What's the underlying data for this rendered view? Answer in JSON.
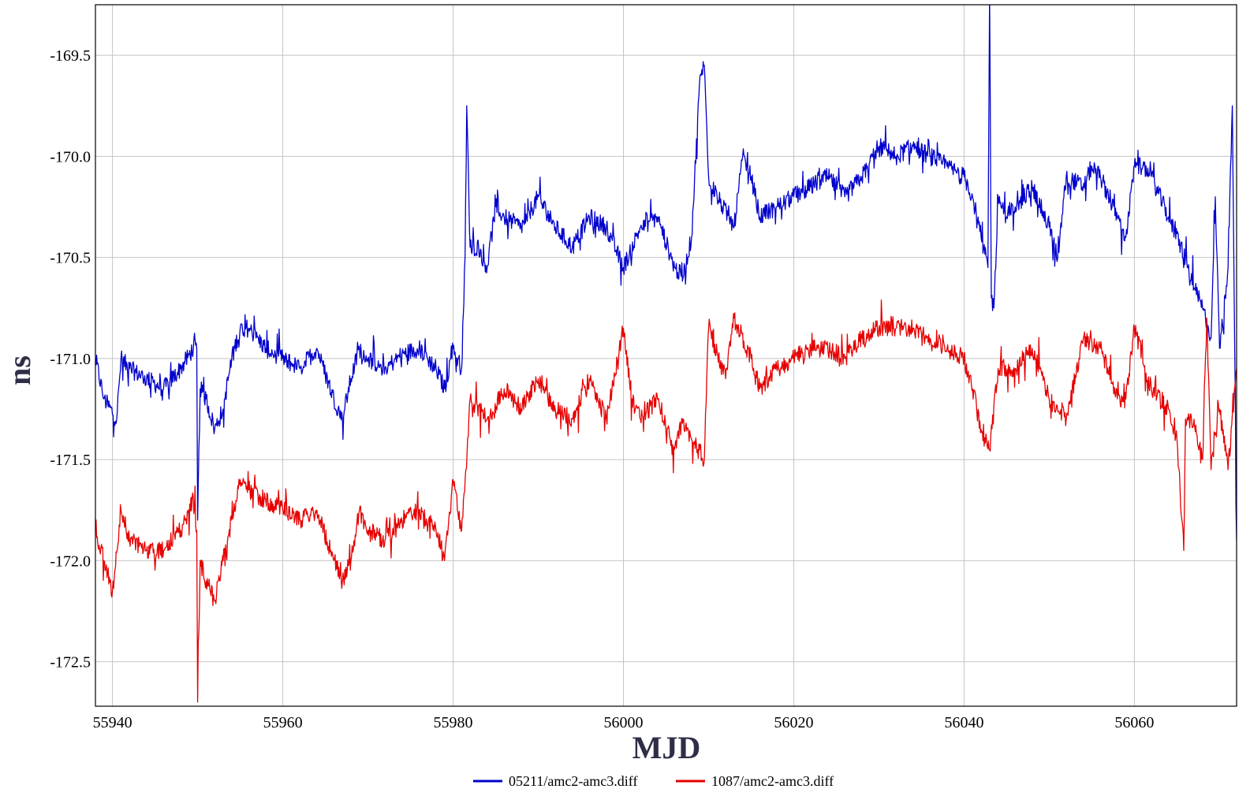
{
  "chart_data": {
    "type": "line",
    "title": "",
    "xlabel": "MJD",
    "ylabel": "ns",
    "xlim": [
      55938,
      56072
    ],
    "ylim": [
      -172.72,
      -169.25
    ],
    "xticks": [
      55940,
      55960,
      55980,
      56000,
      56020,
      56040,
      56060
    ],
    "xtick_labels": [
      "55940",
      "55960",
      "55980",
      "56000",
      "56020",
      "56040",
      "56060"
    ],
    "yticks": [
      -169.5,
      -170.0,
      -170.5,
      -171.0,
      -171.5,
      -172.0,
      -172.5
    ],
    "ytick_labels": [
      "-169.5",
      "-170.0",
      "-170.5",
      "-171.0",
      "-171.5",
      "-172.0",
      "-172.5"
    ],
    "grid": true,
    "legend_position": "bottom-center",
    "series": [
      {
        "name": "05211/amc2-amc3.diff",
        "color": "#0000cc",
        "x": [
          55938.0,
          55939.0,
          55940.5,
          55941.0,
          55942.0,
          55944.0,
          55946.0,
          55948.0,
          55949.5,
          55949.9,
          55950.0,
          55950.3,
          55951.0,
          55952.0,
          55953.0,
          55954.0,
          55955.0,
          55956.0,
          55958.0,
          55960.0,
          55962.0,
          55964.0,
          55966.0,
          55967.0,
          55968.0,
          55969.0,
          55970.0,
          55972.0,
          55974.0,
          55976.0,
          55978.0,
          55979.0,
          55980.0,
          55981.0,
          55981.4,
          55981.6,
          55982.0,
          55983.0,
          55984.0,
          55985.0,
          55986.0,
          55988.0,
          55990.0,
          55992.0,
          55994.0,
          55996.0,
          55998.0,
          56000.0,
          56002.0,
          56004.0,
          56006.0,
          56007.0,
          56008.0,
          56009.0,
          56009.5,
          56010.0,
          56011.0,
          56013.0,
          56014.0,
          56015.0,
          56016.0,
          56018.0,
          56020.0,
          56022.0,
          56024.0,
          56026.0,
          56028.0,
          56030.0,
          56032.0,
          56034.0,
          56036.0,
          56038.0,
          56040.0,
          56041.0,
          56042.0,
          56042.8,
          56043.0,
          56043.2,
          56043.5,
          56044.0,
          56045.0,
          56046.0,
          56048.0,
          56050.0,
          56051.0,
          56052.0,
          56054.0,
          56055.0,
          56056.0,
          56058.0,
          56059.0,
          56060.0,
          56061.0,
          56062.0,
          56064.0,
          56066.0,
          56067.0,
          56068.0,
          56069.0,
          56069.5,
          56070.0,
          56071.0,
          56071.5,
          56072.0
        ],
        "y": [
          -171.0,
          -171.2,
          -171.3,
          -171.0,
          -171.05,
          -171.1,
          -171.15,
          -171.05,
          -170.95,
          -170.95,
          -171.8,
          -171.15,
          -171.2,
          -171.35,
          -171.25,
          -171.0,
          -170.85,
          -170.85,
          -170.95,
          -171.0,
          -171.05,
          -170.95,
          -171.2,
          -171.3,
          -171.1,
          -170.95,
          -171.0,
          -171.05,
          -170.98,
          -170.95,
          -171.05,
          -171.15,
          -170.95,
          -171.05,
          -170.5,
          -169.75,
          -170.45,
          -170.45,
          -170.55,
          -170.25,
          -170.3,
          -170.35,
          -170.2,
          -170.35,
          -170.45,
          -170.3,
          -170.35,
          -170.55,
          -170.35,
          -170.3,
          -170.55,
          -170.6,
          -170.4,
          -169.6,
          -169.55,
          -170.1,
          -170.2,
          -170.35,
          -170.0,
          -170.1,
          -170.3,
          -170.25,
          -170.2,
          -170.15,
          -170.1,
          -170.2,
          -170.1,
          -169.95,
          -170.0,
          -169.95,
          -170.0,
          -170.05,
          -170.1,
          -170.2,
          -170.4,
          -170.55,
          -169.2,
          -170.7,
          -170.75,
          -170.2,
          -170.3,
          -170.25,
          -170.15,
          -170.35,
          -170.5,
          -170.1,
          -170.15,
          -170.05,
          -170.1,
          -170.3,
          -170.4,
          -170.05,
          -170.05,
          -170.1,
          -170.3,
          -170.5,
          -170.65,
          -170.75,
          -170.9,
          -170.2,
          -170.95,
          -170.55,
          -169.75,
          -171.9
        ]
      },
      {
        "name": "1087/amc2-amc3.diff",
        "color": "#e60000",
        "x": [
          55938.0,
          55939.0,
          55940.0,
          55941.0,
          55942.0,
          55944.0,
          55946.0,
          55948.0,
          55949.5,
          55949.9,
          55950.0,
          55950.3,
          55951.0,
          55952.0,
          55953.0,
          55954.0,
          55955.0,
          55956.0,
          55958.0,
          55960.0,
          55962.0,
          55964.0,
          55966.0,
          55967.0,
          55968.0,
          55969.0,
          55970.0,
          55972.0,
          55974.0,
          55976.0,
          55978.0,
          55979.0,
          55980.0,
          55981.0,
          55981.5,
          55982.0,
          55984.0,
          55986.0,
          55988.0,
          55990.0,
          55992.0,
          55994.0,
          55996.0,
          55998.0,
          56000.0,
          56001.0,
          56002.0,
          56004.0,
          56006.0,
          56007.0,
          56008.0,
          56009.5,
          56010.0,
          56012.0,
          56013.0,
          56015.0,
          56016.0,
          56018.0,
          56020.0,
          56022.0,
          56024.0,
          56026.0,
          56028.0,
          56030.0,
          56032.0,
          56034.0,
          56036.0,
          56038.0,
          56040.0,
          56041.0,
          56042.0,
          56043.0,
          56044.0,
          56046.0,
          56048.0,
          56050.0,
          56052.0,
          56054.0,
          56056.0,
          56058.0,
          56059.0,
          56060.0,
          56062.0,
          56064.0,
          56065.0,
          56065.8,
          56066.0,
          56067.0,
          56068.0,
          56068.5,
          56069.0,
          56070.0,
          56071.0,
          56072.0
        ],
        "y": [
          -171.85,
          -172.0,
          -172.15,
          -171.75,
          -171.9,
          -171.95,
          -171.95,
          -171.85,
          -171.7,
          -171.85,
          -172.7,
          -172.0,
          -172.1,
          -172.2,
          -172.0,
          -171.8,
          -171.6,
          -171.65,
          -171.7,
          -171.75,
          -171.8,
          -171.75,
          -172.0,
          -172.1,
          -172.0,
          -171.75,
          -171.85,
          -171.9,
          -171.8,
          -171.75,
          -171.85,
          -172.0,
          -171.6,
          -171.85,
          -171.55,
          -171.2,
          -171.3,
          -171.15,
          -171.25,
          -171.1,
          -171.25,
          -171.3,
          -171.1,
          -171.3,
          -170.85,
          -171.2,
          -171.3,
          -171.2,
          -171.45,
          -171.3,
          -171.4,
          -171.5,
          -170.85,
          -171.1,
          -170.8,
          -171.0,
          -171.15,
          -171.05,
          -171.0,
          -170.95,
          -170.95,
          -171.0,
          -170.9,
          -170.85,
          -170.85,
          -170.85,
          -170.9,
          -170.95,
          -171.0,
          -171.15,
          -171.35,
          -171.45,
          -171.05,
          -171.05,
          -170.95,
          -171.2,
          -171.3,
          -170.9,
          -170.95,
          -171.2,
          -171.2,
          -170.85,
          -171.15,
          -171.25,
          -171.4,
          -171.95,
          -171.3,
          -171.3,
          -171.5,
          -170.8,
          -171.55,
          -171.25,
          -171.55,
          -171.05
        ]
      }
    ]
  }
}
